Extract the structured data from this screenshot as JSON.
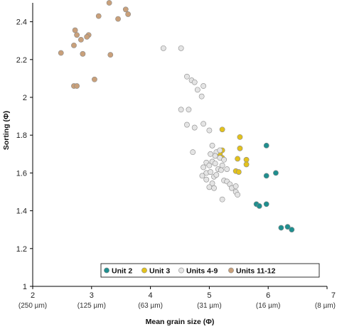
{
  "chart_data": {
    "type": "scatter",
    "xlabel": "Mean grain size (Φ)",
    "ylabel": "Sorting (Φ)",
    "xlim": [
      2,
      7
    ],
    "ylim": [
      1,
      2.5
    ],
    "x_ticks": [
      {
        "value": 2,
        "label": "2",
        "sub": "(250 µm)"
      },
      {
        "value": 3,
        "label": "3",
        "sub": "(125 µm)"
      },
      {
        "value": 4,
        "label": "4",
        "sub": "(63 µm)"
      },
      {
        "value": 5,
        "label": "5",
        "sub": "(31 µm)"
      },
      {
        "value": 6,
        "label": "6",
        "sub": "(16 µm)"
      },
      {
        "value": 7,
        "label": "7",
        "sub": "(8 µm)"
      }
    ],
    "y_ticks": [
      {
        "value": 1,
        "label": "1"
      },
      {
        "value": 1.2,
        "label": "1.2"
      },
      {
        "value": 1.4,
        "label": "1.4"
      },
      {
        "value": 1.6,
        "label": "1.6"
      },
      {
        "value": 1.8,
        "label": "1.8"
      },
      {
        "value": 2,
        "label": "2"
      },
      {
        "value": 2.2,
        "label": "2.2"
      },
      {
        "value": 2.4,
        "label": "2.4"
      }
    ],
    "grid": false,
    "legend_position": "bottom",
    "series": [
      {
        "name": "Unit 2",
        "color": "#1f8f8f",
        "points": [
          [
            5.97,
            1.745
          ],
          [
            5.97,
            1.585
          ],
          [
            6.13,
            1.6
          ],
          [
            5.8,
            1.435
          ],
          [
            5.85,
            1.425
          ],
          [
            5.97,
            1.435
          ],
          [
            6.22,
            1.31
          ],
          [
            6.33,
            1.315
          ],
          [
            6.4,
            1.3
          ]
        ]
      },
      {
        "name": "Unit 3",
        "color": "#e3c21c",
        "points": [
          [
            5.22,
            1.83
          ],
          [
            5.52,
            1.79
          ],
          [
            5.22,
            1.72
          ],
          [
            5.18,
            1.7
          ],
          [
            5.52,
            1.73
          ],
          [
            5.22,
            1.68
          ],
          [
            5.63,
            1.67
          ],
          [
            5.63,
            1.645
          ],
          [
            5.48,
            1.675
          ],
          [
            5.45,
            1.61
          ],
          [
            5.5,
            1.605
          ]
        ]
      },
      {
        "name": "Units 4-9",
        "color": "#e4e4e4",
        "points": [
          [
            4.22,
            2.26
          ],
          [
            4.52,
            2.26
          ],
          [
            4.62,
            2.11
          ],
          [
            4.7,
            2.09
          ],
          [
            4.75,
            2.08
          ],
          [
            4.8,
            2.04
          ],
          [
            4.87,
            2.005
          ],
          [
            4.9,
            2.06
          ],
          [
            4.52,
            1.935
          ],
          [
            4.65,
            1.935
          ],
          [
            4.62,
            1.855
          ],
          [
            4.75,
            1.84
          ],
          [
            4.9,
            1.86
          ],
          [
            5.0,
            1.825
          ],
          [
            4.72,
            1.71
          ],
          [
            5.05,
            1.745
          ],
          [
            5.12,
            1.71
          ],
          [
            5.18,
            1.72
          ],
          [
            5.02,
            1.7
          ],
          [
            5.1,
            1.69
          ],
          [
            5.18,
            1.68
          ],
          [
            4.95,
            1.655
          ],
          [
            5.0,
            1.64
          ],
          [
            5.05,
            1.66
          ],
          [
            5.1,
            1.65
          ],
          [
            5.15,
            1.62
          ],
          [
            5.22,
            1.64
          ],
          [
            5.25,
            1.67
          ],
          [
            5.3,
            1.62
          ],
          [
            4.9,
            1.63
          ],
          [
            4.95,
            1.6
          ],
          [
            5.02,
            1.605
          ],
          [
            5.08,
            1.58
          ],
          [
            5.12,
            1.59
          ],
          [
            5.2,
            1.615
          ],
          [
            4.88,
            1.585
          ],
          [
            4.95,
            1.565
          ],
          [
            5.05,
            1.545
          ],
          [
            5.25,
            1.56
          ],
          [
            5.3,
            1.555
          ],
          [
            5.35,
            1.54
          ],
          [
            5.38,
            1.52
          ],
          [
            5.45,
            1.5
          ],
          [
            5.45,
            1.53
          ],
          [
            5.48,
            1.485
          ],
          [
            5.0,
            1.525
          ],
          [
            5.22,
            1.46
          ],
          [
            5.08,
            1.52
          ]
        ]
      },
      {
        "name": "Units 11-12",
        "color": "#c9a07a",
        "points": [
          [
            3.3,
            2.5
          ],
          [
            3.12,
            2.43
          ],
          [
            3.58,
            2.465
          ],
          [
            3.62,
            2.44
          ],
          [
            3.45,
            2.415
          ],
          [
            2.72,
            2.355
          ],
          [
            2.75,
            2.33
          ],
          [
            2.95,
            2.33
          ],
          [
            2.92,
            2.32
          ],
          [
            2.82,
            2.305
          ],
          [
            2.7,
            2.275
          ],
          [
            2.48,
            2.235
          ],
          [
            2.85,
            2.23
          ],
          [
            3.32,
            2.225
          ],
          [
            3.05,
            2.095
          ],
          [
            2.7,
            2.06
          ],
          [
            2.75,
            2.06
          ]
        ]
      }
    ]
  }
}
